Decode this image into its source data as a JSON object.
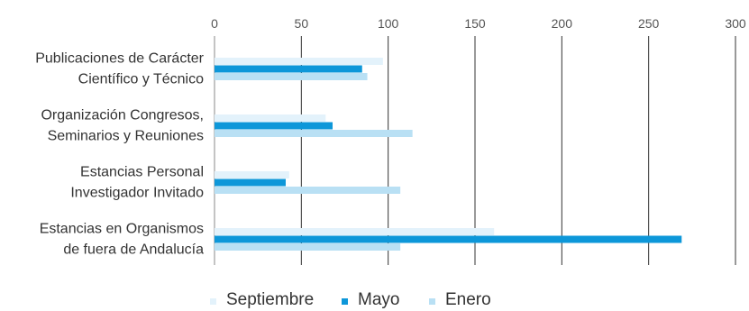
{
  "chart_data": {
    "type": "bar",
    "orientation": "horizontal",
    "title": "",
    "xlabel": "",
    "ylabel": "",
    "xlim": [
      0,
      300
    ],
    "x_ticks": [
      0,
      50,
      100,
      150,
      200,
      250,
      300
    ],
    "tick_labels": [
      "0",
      "50",
      "100",
      "150",
      "200",
      "250",
      "300"
    ],
    "grid": "vertical",
    "legend_position": "bottom",
    "categories": [
      [
        "Publicaciones de Carácter",
        "Científico y Técnico"
      ],
      [
        "Organización Congresos,",
        "Seminarios y Reuniones"
      ],
      [
        "Estancias Personal",
        "Investigador Invitado"
      ],
      [
        "Estancias en Organismos",
        "de fuera de Andalucía"
      ]
    ],
    "series": [
      {
        "name": "Septiembre",
        "color": "#e3f2fb",
        "values": [
          97,
          64,
          43,
          161
        ]
      },
      {
        "name": "Mayo",
        "color": "#0d97d9",
        "values": [
          85,
          68,
          41,
          269
        ]
      },
      {
        "name": "Enero",
        "color": "#b9e0f4",
        "values": [
          88,
          114,
          107,
          107
        ]
      }
    ]
  }
}
